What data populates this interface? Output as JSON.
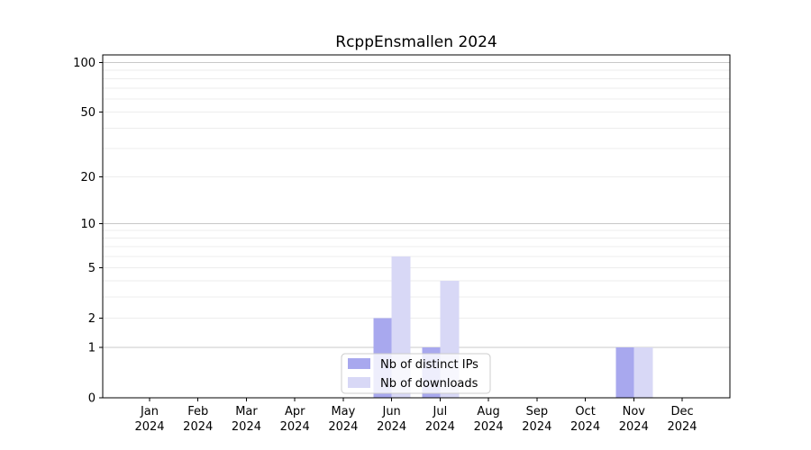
{
  "chart_data": {
    "type": "bar",
    "title": "RcppEnsmallen 2024",
    "xlabel": "",
    "ylabel": "",
    "yscale": "log1p",
    "ylim": [
      0,
      100
    ],
    "grid": "horizontal",
    "legend_position": "lower center",
    "categories": [
      "Jan 2024",
      "Feb 2024",
      "Mar 2024",
      "Apr 2024",
      "May 2024",
      "Jun 2024",
      "Jul 2024",
      "Aug 2024",
      "Sep 2024",
      "Oct 2024",
      "Nov 2024",
      "Dec 2024"
    ],
    "series": [
      {
        "name": "Nb of distinct IPs",
        "color": "#a8a8ee",
        "values": [
          0,
          0,
          0,
          0,
          0,
          2,
          1,
          0,
          0,
          0,
          1,
          0
        ]
      },
      {
        "name": "Nb of downloads",
        "color": "#d8d8f6",
        "values": [
          0,
          0,
          0,
          0,
          0,
          6,
          4,
          0,
          0,
          0,
          1,
          0
        ]
      }
    ],
    "y_ticks": [
      0,
      1,
      2,
      5,
      10,
      20,
      50,
      100
    ],
    "gridlines": {
      "major": [
        1,
        10,
        100
      ],
      "minor": [
        2,
        3,
        4,
        5,
        6,
        7,
        8,
        9,
        20,
        30,
        40,
        50,
        60,
        70,
        80,
        90
      ]
    }
  },
  "colors": {
    "background": "#ffffff",
    "spine": "#000000",
    "grid_major": "#c8c8c8",
    "grid_minor": "#ededed",
    "legend_border": "#cccccc",
    "legend_background": "#ffffff",
    "text": "#000000"
  }
}
